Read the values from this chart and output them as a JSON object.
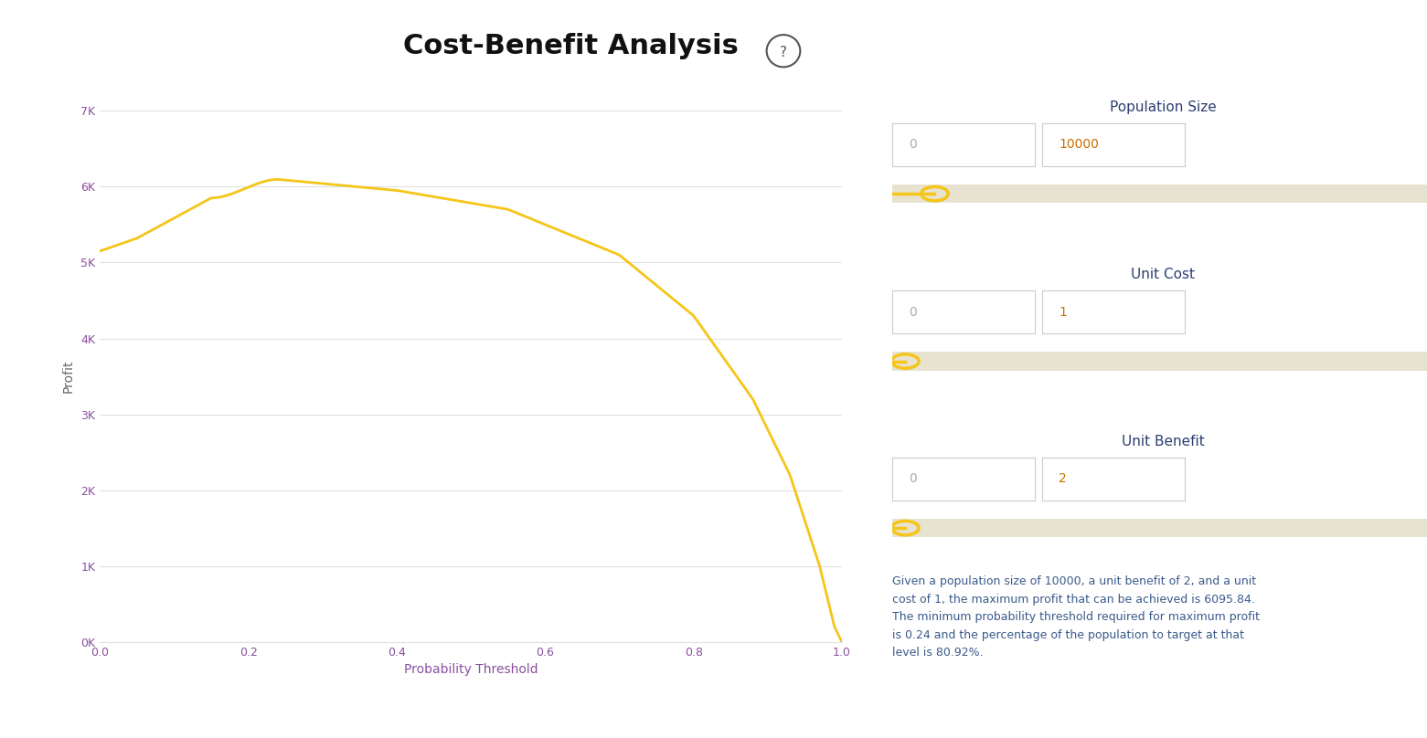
{
  "title": "Cost-Benefit Analysis",
  "title_fontsize": 22,
  "title_fontweight": "bold",
  "xlabel": "Probability Threshold",
  "ylabel": "Profit",
  "xlabel_fontsize": 10,
  "ylabel_fontsize": 10,
  "xlim": [
    0.0,
    1.0
  ],
  "ylim": [
    0,
    7000
  ],
  "ytick_labels": [
    "0K",
    "1K",
    "2K",
    "3K",
    "4K",
    "5K",
    "6K",
    "7K"
  ],
  "ytick_values": [
    0,
    1000,
    2000,
    3000,
    4000,
    5000,
    6000,
    7000
  ],
  "xtick_values": [
    0.0,
    0.2,
    0.4,
    0.6,
    0.8,
    1.0
  ],
  "line_color": "#F5C518",
  "line_width": 2.0,
  "background_color": "#ffffff",
  "grid_color": "#e0e0e0",
  "axis_label_color": "#666666",
  "tick_label_color": "#8B4F9E",
  "population_size": 10000,
  "unit_cost": 1,
  "unit_benefit": 2,
  "max_profit": 6095.84,
  "optimal_threshold": 0.24,
  "target_pct": 80.92,
  "description": "Given a population size of 10000, a unit benefit of 2, and a unit\ncost of 1, the maximum profit that can be achieved is 6095.84.\nThe minimum probability threshold required for maximum profit\nis 0.24 and the percentage of the population to target at that\nlevel is 80.92%.",
  "slider_color": "#F5C518",
  "slider_track_color": "#e8e3d0",
  "panel_label_color": "#2c3e70",
  "input_border_color": "#cccccc",
  "input_text_color_0": "#aaaaaa",
  "input_text_color_val": "#c87000",
  "qmark_color": "#555555"
}
